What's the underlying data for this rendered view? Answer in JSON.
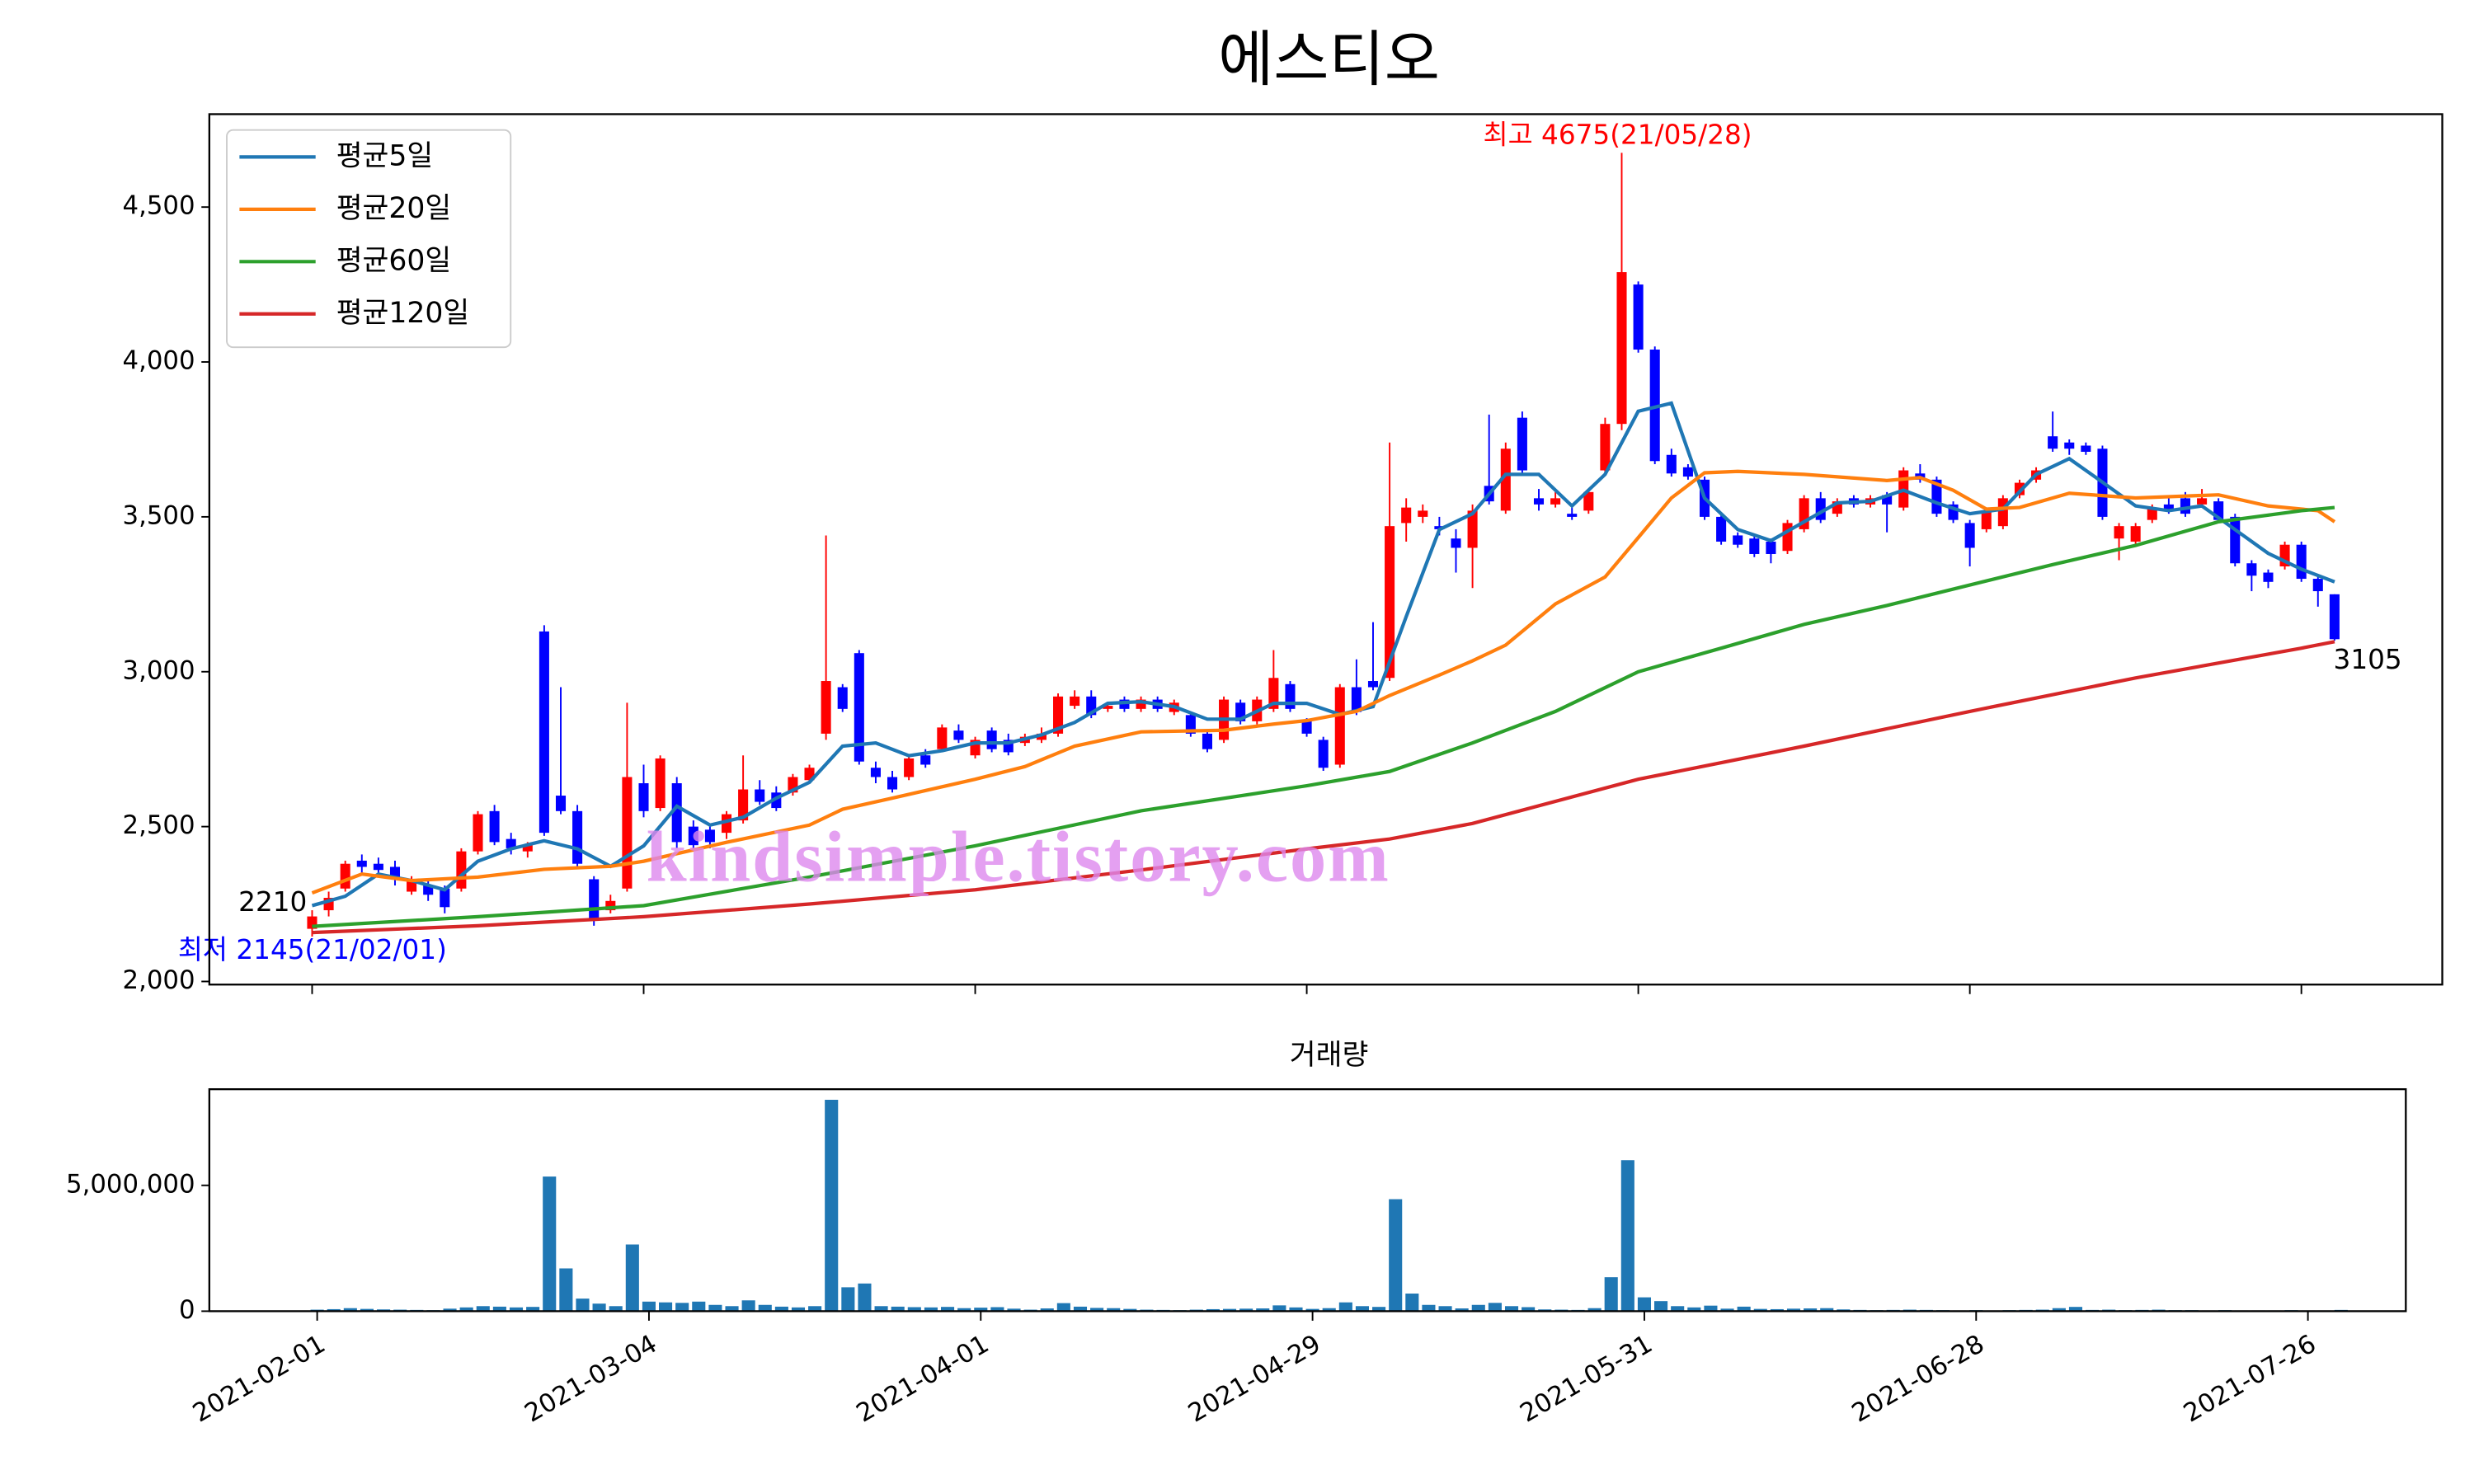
{
  "chart_data": [
    {
      "type": "candlestick",
      "title": "에스티오",
      "up_color": "red",
      "down_color": "blue",
      "xlim": [
        -6.2,
        128.5
      ],
      "ylim": [
        1990,
        4800
      ],
      "yticks": [
        {
          "value": 2000,
          "label": "2,000"
        },
        {
          "value": 2500,
          "label": "2,500"
        },
        {
          "value": 3000,
          "label": "3,000"
        },
        {
          "value": 3500,
          "label": "3,500"
        },
        {
          "value": 4000,
          "label": "4,000"
        },
        {
          "value": 4500,
          "label": "4,500"
        }
      ],
      "legend": "upper left",
      "ohlc": [
        [
          2170,
          2230,
          2145,
          2210
        ],
        [
          2230,
          2290,
          2210,
          2270
        ],
        [
          2300,
          2390,
          2290,
          2380
        ],
        [
          2390,
          2410,
          2350,
          2370
        ],
        [
          2380,
          2400,
          2340,
          2360
        ],
        [
          2370,
          2390,
          2310,
          2330
        ],
        [
          2290,
          2340,
          2280,
          2330
        ],
        [
          2310,
          2330,
          2260,
          2280
        ],
        [
          2300,
          2310,
          2220,
          2240
        ],
        [
          2300,
          2430,
          2290,
          2420
        ],
        [
          2420,
          2550,
          2410,
          2540
        ],
        [
          2550,
          2570,
          2440,
          2450
        ],
        [
          2460,
          2480,
          2410,
          2430
        ],
        [
          2420,
          2450,
          2400,
          2440
        ],
        [
          3130,
          3150,
          2470,
          2480
        ],
        [
          2600,
          2950,
          2540,
          2550
        ],
        [
          2550,
          2570,
          2370,
          2380
        ],
        [
          2330,
          2340,
          2180,
          2200
        ],
        [
          2230,
          2280,
          2220,
          2260
        ],
        [
          2300,
          2900,
          2290,
          2660
        ],
        [
          2640,
          2700,
          2530,
          2550
        ],
        [
          2560,
          2730,
          2550,
          2720
        ],
        [
          2640,
          2660,
          2430,
          2450
        ],
        [
          2500,
          2520,
          2420,
          2440
        ],
        [
          2490,
          2510,
          2430,
          2450
        ],
        [
          2480,
          2550,
          2460,
          2540
        ],
        [
          2520,
          2730,
          2510,
          2620
        ],
        [
          2620,
          2650,
          2570,
          2580
        ],
        [
          2610,
          2630,
          2550,
          2560
        ],
        [
          2610,
          2670,
          2600,
          2660
        ],
        [
          2650,
          2700,
          2640,
          2690
        ],
        [
          2800,
          3440,
          2780,
          2970
        ],
        [
          2950,
          2960,
          2870,
          2880
        ],
        [
          3060,
          3070,
          2700,
          2710
        ],
        [
          2690,
          2710,
          2640,
          2660
        ],
        [
          2660,
          2680,
          2610,
          2620
        ],
        [
          2660,
          2730,
          2650,
          2720
        ],
        [
          2730,
          2750,
          2690,
          2700
        ],
        [
          2750,
          2830,
          2740,
          2820
        ],
        [
          2810,
          2830,
          2770,
          2780
        ],
        [
          2730,
          2790,
          2720,
          2780
        ],
        [
          2810,
          2820,
          2740,
          2750
        ],
        [
          2780,
          2800,
          2730,
          2740
        ],
        [
          2770,
          2800,
          2760,
          2790
        ],
        [
          2780,
          2820,
          2770,
          2800
        ],
        [
          2800,
          2930,
          2790,
          2920
        ],
        [
          2890,
          2940,
          2880,
          2920
        ],
        [
          2920,
          2940,
          2850,
          2860
        ],
        [
          2880,
          2900,
          2870,
          2890
        ],
        [
          2910,
          2920,
          2870,
          2880
        ],
        [
          2880,
          2920,
          2870,
          2910
        ],
        [
          2910,
          2920,
          2870,
          2880
        ],
        [
          2870,
          2910,
          2860,
          2900
        ],
        [
          2860,
          2870,
          2790,
          2800
        ],
        [
          2800,
          2810,
          2740,
          2750
        ],
        [
          2780,
          2920,
          2770,
          2910
        ],
        [
          2900,
          2910,
          2830,
          2840
        ],
        [
          2840,
          2920,
          2830,
          2910
        ],
        [
          2880,
          3070,
          2870,
          2980
        ],
        [
          2960,
          2970,
          2870,
          2880
        ],
        [
          2840,
          2850,
          2790,
          2800
        ],
        [
          2780,
          2790,
          2680,
          2690
        ],
        [
          2700,
          2960,
          2690,
          2950
        ],
        [
          2950,
          3040,
          2860,
          2870
        ],
        [
          2970,
          3160,
          2940,
          2950
        ],
        [
          2980,
          3740,
          2970,
          3470
        ],
        [
          3480,
          3560,
          3420,
          3530
        ],
        [
          3500,
          3540,
          3480,
          3520
        ],
        [
          3470,
          3500,
          3440,
          3460
        ],
        [
          3430,
          3460,
          3320,
          3400
        ],
        [
          3400,
          3540,
          3270,
          3520
        ],
        [
          3600,
          3830,
          3540,
          3550
        ],
        [
          3520,
          3740,
          3510,
          3720
        ],
        [
          3820,
          3840,
          3640,
          3650
        ],
        [
          3560,
          3590,
          3520,
          3540
        ],
        [
          3540,
          3580,
          3530,
          3560
        ],
        [
          3510,
          3530,
          3490,
          3500
        ],
        [
          3520,
          3590,
          3510,
          3580
        ],
        [
          3650,
          3820,
          3640,
          3800
        ],
        [
          3800,
          4675,
          3780,
          4290
        ],
        [
          4250,
          4260,
          4030,
          4040
        ],
        [
          4040,
          4050,
          3670,
          3680
        ],
        [
          3700,
          3720,
          3630,
          3640
        ],
        [
          3660,
          3670,
          3620,
          3630
        ],
        [
          3620,
          3630,
          3490,
          3500
        ],
        [
          3500,
          3510,
          3410,
          3420
        ],
        [
          3440,
          3450,
          3400,
          3410
        ],
        [
          3430,
          3440,
          3370,
          3380
        ],
        [
          3420,
          3430,
          3350,
          3380
        ],
        [
          3390,
          3490,
          3380,
          3480
        ],
        [
          3460,
          3570,
          3450,
          3560
        ],
        [
          3560,
          3580,
          3480,
          3490
        ],
        [
          3510,
          3560,
          3500,
          3550
        ],
        [
          3560,
          3570,
          3530,
          3540
        ],
        [
          3540,
          3570,
          3530,
          3560
        ],
        [
          3570,
          3580,
          3450,
          3540
        ],
        [
          3530,
          3660,
          3520,
          3650
        ],
        [
          3640,
          3670,
          3610,
          3620
        ],
        [
          3620,
          3630,
          3500,
          3510
        ],
        [
          3540,
          3550,
          3480,
          3490
        ],
        [
          3480,
          3490,
          3340,
          3400
        ],
        [
          3460,
          3530,
          3450,
          3520
        ],
        [
          3470,
          3570,
          3460,
          3560
        ],
        [
          3570,
          3620,
          3560,
          3610
        ],
        [
          3620,
          3660,
          3610,
          3650
        ],
        [
          3760,
          3840,
          3710,
          3720
        ],
        [
          3740,
          3750,
          3700,
          3720
        ],
        [
          3730,
          3740,
          3700,
          3710
        ],
        [
          3720,
          3730,
          3490,
          3500
        ],
        [
          3430,
          3480,
          3360,
          3470
        ],
        [
          3420,
          3480,
          3410,
          3470
        ],
        [
          3490,
          3540,
          3480,
          3530
        ],
        [
          3540,
          3560,
          3510,
          3520
        ],
        [
          3560,
          3580,
          3500,
          3510
        ],
        [
          3540,
          3590,
          3530,
          3560
        ],
        [
          3550,
          3560,
          3480,
          3490
        ],
        [
          3500,
          3510,
          3340,
          3350
        ],
        [
          3350,
          3360,
          3260,
          3310
        ],
        [
          3320,
          3330,
          3270,
          3290
        ],
        [
          3340,
          3420,
          3330,
          3410
        ],
        [
          3410,
          3420,
          3290,
          3300
        ],
        [
          3300,
          3310,
          3210,
          3260
        ],
        [
          3250,
          3250,
          3100,
          3105
        ]
      ],
      "series": [
        {
          "name": "평균5일",
          "color": "#1f77b4",
          "x": [
            0,
            2,
            4,
            6,
            8,
            10,
            12,
            14,
            16,
            18,
            20,
            22,
            24,
            26,
            28,
            30,
            32,
            34,
            36,
            38,
            40,
            42,
            44,
            46,
            48,
            50,
            52,
            54,
            56,
            58,
            60,
            62,
            64,
            66,
            68,
            70,
            72,
            74,
            76,
            78,
            80,
            82,
            84,
            86,
            88,
            90,
            92,
            94,
            96,
            98,
            100,
            102,
            104,
            106,
            108,
            110,
            112,
            114,
            116,
            118,
            120,
            122
          ],
          "values": [
            2245,
            2275,
            2347,
            2326,
            2296,
            2388,
            2428,
            2454,
            2428,
            2372,
            2438,
            2566,
            2505,
            2530,
            2592,
            2643,
            2760,
            2770,
            2729,
            2745,
            2770,
            2770,
            2796,
            2836,
            2898,
            2903,
            2887,
            2847,
            2847,
            2898,
            2898,
            2862,
            2887,
            3178,
            3459,
            3510,
            3637,
            3637,
            3535,
            3637,
            3841,
            3867,
            3561,
            3459,
            3423,
            3484,
            3545,
            3550,
            3586,
            3545,
            3510,
            3525,
            3637,
            3688,
            3612,
            3535,
            3520,
            3535,
            3459,
            3382,
            3331,
            3290
          ]
        },
        {
          "name": "평균20일",
          "color": "#ff7f0e",
          "x": [
            0,
            3,
            6,
            10,
            14,
            18,
            20,
            25,
            30,
            32,
            35,
            40,
            43,
            46,
            50,
            55,
            58,
            60,
            63,
            65,
            68,
            70,
            72,
            75,
            78,
            80,
            82,
            84,
            86,
            90,
            95,
            97,
            99,
            101,
            103,
            106,
            110,
            115,
            118,
            121,
            122
          ],
          "values": [
            2286,
            2347,
            2326,
            2337,
            2362,
            2372,
            2388,
            2449,
            2505,
            2556,
            2592,
            2653,
            2694,
            2760,
            2806,
            2811,
            2831,
            2842,
            2872,
            2923,
            2989,
            3035,
            3086,
            3219,
            3306,
            3433,
            3561,
            3642,
            3647,
            3637,
            3617,
            3627,
            3586,
            3525,
            3530,
            3576,
            3561,
            3571,
            3535,
            3520,
            3484
          ]
        },
        {
          "name": "평균60일",
          "color": "#2ca02c",
          "x": [
            0,
            10,
            20,
            30,
            40,
            50,
            60,
            65,
            70,
            75,
            80,
            85,
            90,
            95,
            100,
            105,
            110,
            115,
            120,
            122
          ],
          "values": [
            2178,
            2209,
            2245,
            2337,
            2438,
            2551,
            2632,
            2678,
            2770,
            2872,
            3000,
            3076,
            3153,
            3214,
            3280,
            3346,
            3408,
            3484,
            3520,
            3530
          ]
        },
        {
          "name": "평균120일",
          "color": "#d62728",
          "x": [
            0,
            10,
            20,
            30,
            40,
            50,
            60,
            65,
            70,
            80,
            90,
            100,
            110,
            120,
            122
          ],
          "values": [
            2158,
            2180,
            2209,
            2250,
            2296,
            2360,
            2428,
            2460,
            2510,
            2653,
            2760,
            2872,
            2980,
            3076,
            3097
          ]
        }
      ],
      "annotations": [
        {
          "text": "최고 4675(21/05/28)",
          "color": "red"
        },
        {
          "text": "최저 2145(21/02/01)",
          "color": "blue"
        },
        {
          "text": "2210",
          "color": "black"
        },
        {
          "text": "3105",
          "color": "black"
        }
      ],
      "watermark": "kindsimple.tistory.com"
    },
    {
      "type": "bar",
      "title": "거래량",
      "color": "#1f77b4",
      "xlim": [
        -6.5,
        125.9
      ],
      "ylim": [
        0,
        8820000
      ],
      "yticks": [
        0,
        {
          "value": 5000000,
          "label": "5,000,000"
        }
      ],
      "xticks": [
        {
          "value": 0,
          "label": "2021-02-01"
        },
        {
          "value": 20,
          "label": "2021-03-04"
        },
        {
          "value": 40,
          "label": "2021-04-01"
        },
        {
          "value": 60,
          "label": "2021-04-29"
        },
        {
          "value": 80,
          "label": "2021-05-31"
        },
        {
          "value": 100,
          "label": "2021-06-28"
        },
        {
          "value": 120,
          "label": "2021-07-26"
        }
      ],
      "values": [
        60000,
        80000,
        120000,
        90000,
        70000,
        60000,
        50000,
        40000,
        100000,
        150000,
        200000,
        180000,
        150000,
        170000,
        5350000,
        1700000,
        500000,
        300000,
        200000,
        2650000,
        380000,
        350000,
        330000,
        380000,
        250000,
        200000,
        430000,
        250000,
        180000,
        150000,
        200000,
        8400000,
        950000,
        1100000,
        200000,
        180000,
        160000,
        150000,
        170000,
        120000,
        140000,
        160000,
        100000,
        60000,
        110000,
        320000,
        180000,
        130000,
        120000,
        90000,
        60000,
        50000,
        40000,
        60000,
        80000,
        90000,
        100000,
        110000,
        230000,
        150000,
        90000,
        120000,
        350000,
        200000,
        170000,
        4450000,
        700000,
        250000,
        200000,
        110000,
        250000,
        330000,
        200000,
        160000,
        70000,
        60000,
        50000,
        120000,
        1350000,
        6000000,
        550000,
        400000,
        200000,
        150000,
        220000,
        100000,
        180000,
        90000,
        80000,
        100000,
        110000,
        120000,
        70000,
        50000,
        40000,
        50000,
        60000,
        50000,
        40000,
        30000,
        40000,
        30000,
        40000,
        50000,
        60000,
        120000,
        170000,
        50000,
        60000,
        40000,
        50000,
        60000,
        40000,
        40000,
        30000,
        40000,
        30000,
        30000,
        30000,
        40000,
        30000,
        30000,
        50000
      ]
    }
  ]
}
